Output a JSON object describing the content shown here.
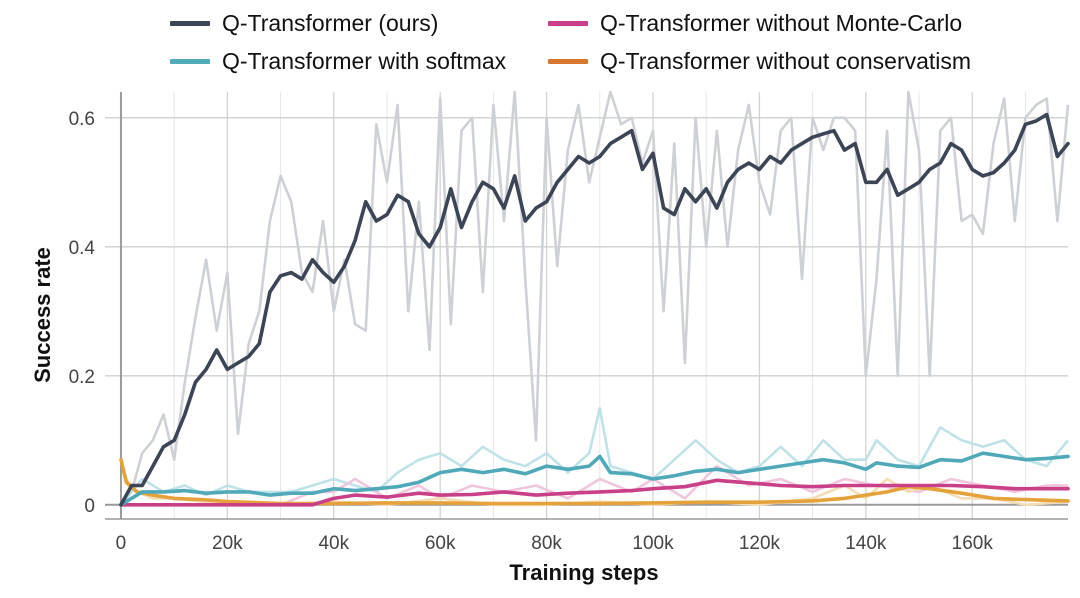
{
  "chart_data": {
    "type": "line",
    "xlabel": "Training steps",
    "ylabel": "Success rate",
    "xlim": [
      -3000,
      178000
    ],
    "ylim": [
      -0.022,
      0.64
    ],
    "xticks": [
      {
        "value": 0,
        "label": "0"
      },
      {
        "value": 20000,
        "label": "20k"
      },
      {
        "value": 40000,
        "label": "40k"
      },
      {
        "value": 60000,
        "label": "60k"
      },
      {
        "value": 80000,
        "label": "80k"
      },
      {
        "value": 100000,
        "label": "100k"
      },
      {
        "value": 120000,
        "label": "120k"
      },
      {
        "value": 140000,
        "label": "140k"
      },
      {
        "value": 160000,
        "label": "160k"
      }
    ],
    "yticks": [
      {
        "value": 0,
        "label": "0"
      },
      {
        "value": 0.2,
        "label": "0.2"
      },
      {
        "value": 0.4,
        "label": "0.4"
      },
      {
        "value": 0.6,
        "label": "0.6"
      }
    ],
    "grid": true,
    "legend_position": "top",
    "series": [
      {
        "name": "Q-Transformer (ours)",
        "color": "#3b4556",
        "raw_color": "#cdd1d6",
        "x": [
          0,
          2000,
          4000,
          6000,
          8000,
          10000,
          12000,
          14000,
          16000,
          18000,
          20000,
          22000,
          24000,
          26000,
          28000,
          30000,
          32000,
          34000,
          36000,
          38000,
          40000,
          42000,
          44000,
          46000,
          48000,
          50000,
          52000,
          54000,
          56000,
          58000,
          60000,
          62000,
          64000,
          66000,
          68000,
          70000,
          72000,
          74000,
          76000,
          78000,
          80000,
          82000,
          84000,
          86000,
          88000,
          90000,
          92000,
          94000,
          96000,
          98000,
          100000,
          102000,
          104000,
          106000,
          108000,
          110000,
          112000,
          114000,
          116000,
          118000,
          120000,
          122000,
          124000,
          126000,
          128000,
          130000,
          132000,
          134000,
          136000,
          138000,
          140000,
          142000,
          144000,
          146000,
          148000,
          150000,
          152000,
          154000,
          156000,
          158000,
          160000,
          162000,
          164000,
          166000,
          168000,
          170000,
          172000,
          174000,
          176000,
          178000
        ],
        "values": [
          0.0,
          0.03,
          0.03,
          0.06,
          0.09,
          0.1,
          0.14,
          0.19,
          0.21,
          0.24,
          0.21,
          0.22,
          0.23,
          0.25,
          0.33,
          0.355,
          0.36,
          0.35,
          0.38,
          0.36,
          0.345,
          0.37,
          0.41,
          0.47,
          0.44,
          0.45,
          0.48,
          0.47,
          0.42,
          0.4,
          0.43,
          0.49,
          0.43,
          0.47,
          0.5,
          0.49,
          0.46,
          0.51,
          0.44,
          0.46,
          0.47,
          0.5,
          0.52,
          0.54,
          0.53,
          0.54,
          0.56,
          0.57,
          0.58,
          0.52,
          0.545,
          0.46,
          0.45,
          0.49,
          0.47,
          0.49,
          0.46,
          0.5,
          0.52,
          0.53,
          0.52,
          0.54,
          0.53,
          0.55,
          0.56,
          0.57,
          0.575,
          0.58,
          0.55,
          0.56,
          0.5,
          0.5,
          0.52,
          0.48,
          0.49,
          0.5,
          0.52,
          0.53,
          0.56,
          0.55,
          0.52,
          0.51,
          0.515,
          0.53,
          0.55,
          0.59,
          0.595,
          0.605,
          0.54,
          0.56
        ],
        "raw_values": [
          0.0,
          0.02,
          0.08,
          0.1,
          0.14,
          0.07,
          0.19,
          0.29,
          0.38,
          0.27,
          0.36,
          0.11,
          0.25,
          0.3,
          0.44,
          0.51,
          0.47,
          0.36,
          0.33,
          0.44,
          0.3,
          0.38,
          0.28,
          0.27,
          0.59,
          0.5,
          0.62,
          0.3,
          0.47,
          0.24,
          0.63,
          0.28,
          0.58,
          0.6,
          0.33,
          0.62,
          0.44,
          0.64,
          0.35,
          0.1,
          0.6,
          0.37,
          0.55,
          0.62,
          0.5,
          0.57,
          0.64,
          0.59,
          0.6,
          0.53,
          0.58,
          0.3,
          0.56,
          0.22,
          0.6,
          0.4,
          0.58,
          0.4,
          0.55,
          0.62,
          0.5,
          0.45,
          0.58,
          0.6,
          0.35,
          0.6,
          0.55,
          0.6,
          0.6,
          0.58,
          0.2,
          0.35,
          0.58,
          0.2,
          0.64,
          0.55,
          0.2,
          0.58,
          0.6,
          0.44,
          0.45,
          0.42,
          0.56,
          0.63,
          0.44,
          0.6,
          0.62,
          0.63,
          0.44,
          0.62
        ]
      },
      {
        "name": "Q-Transformer with softmax",
        "color": "#4fa9b9",
        "raw_color": "#bfe2e8",
        "x": [
          0,
          4000,
          8000,
          12000,
          16000,
          20000,
          24000,
          28000,
          32000,
          36000,
          40000,
          44000,
          48000,
          52000,
          56000,
          60000,
          64000,
          68000,
          72000,
          76000,
          80000,
          84000,
          88000,
          90000,
          92000,
          96000,
          100000,
          104000,
          108000,
          112000,
          116000,
          120000,
          124000,
          128000,
          132000,
          136000,
          140000,
          142000,
          146000,
          150000,
          154000,
          158000,
          162000,
          166000,
          170000,
          174000,
          178000
        ],
        "values": [
          0.0,
          0.02,
          0.02,
          0.022,
          0.018,
          0.02,
          0.02,
          0.015,
          0.018,
          0.018,
          0.025,
          0.022,
          0.025,
          0.028,
          0.035,
          0.05,
          0.055,
          0.05,
          0.055,
          0.048,
          0.06,
          0.055,
          0.06,
          0.075,
          0.05,
          0.048,
          0.04,
          0.045,
          0.052,
          0.055,
          0.05,
          0.055,
          0.06,
          0.065,
          0.07,
          0.065,
          0.055,
          0.065,
          0.06,
          0.058,
          0.07,
          0.068,
          0.08,
          0.075,
          0.07,
          0.072,
          0.075
        ],
        "raw_values": [
          0.0,
          0.04,
          0.02,
          0.03,
          0.015,
          0.03,
          0.02,
          0.02,
          0.02,
          0.03,
          0.04,
          0.03,
          0.02,
          0.05,
          0.07,
          0.08,
          0.06,
          0.09,
          0.07,
          0.06,
          0.08,
          0.05,
          0.08,
          0.15,
          0.06,
          0.05,
          0.04,
          0.07,
          0.1,
          0.07,
          0.05,
          0.06,
          0.09,
          0.06,
          0.1,
          0.07,
          0.07,
          0.1,
          0.07,
          0.06,
          0.12,
          0.1,
          0.09,
          0.1,
          0.07,
          0.06,
          0.1
        ]
      },
      {
        "name": "Q-Transformer without Monte-Carlo",
        "color": "#c94088",
        "raw_color": "#f0c6dd",
        "x": [
          0,
          10000,
          20000,
          30000,
          36000,
          40000,
          44000,
          50000,
          56000,
          60000,
          66000,
          72000,
          78000,
          84000,
          90000,
          96000,
          100000,
          106000,
          112000,
          118000,
          124000,
          130000,
          136000,
          142000,
          150000,
          156000,
          162000,
          168000,
          174000,
          178000
        ],
        "values": [
          0.0,
          0.0,
          0.0,
          0.0,
          0.0,
          0.01,
          0.015,
          0.012,
          0.018,
          0.015,
          0.016,
          0.02,
          0.015,
          0.018,
          0.02,
          0.022,
          0.025,
          0.028,
          0.038,
          0.034,
          0.03,
          0.028,
          0.03,
          0.03,
          0.03,
          0.03,
          0.028,
          0.025,
          0.025,
          0.025
        ],
        "raw_values": [
          0.0,
          0.0,
          0.0,
          0.0,
          0.02,
          0.02,
          0.04,
          0.01,
          0.03,
          0.01,
          0.03,
          0.02,
          0.03,
          0.01,
          0.04,
          0.02,
          0.04,
          0.01,
          0.06,
          0.03,
          0.04,
          0.02,
          0.04,
          0.03,
          0.02,
          0.04,
          0.03,
          0.02,
          0.03,
          0.03
        ]
      },
      {
        "name": "Q-Transformer without conservatism",
        "color": "#e6a23a",
        "legend_color": "#d9772f",
        "raw_color": "#f4ddb5",
        "x": [
          0,
          1000,
          3000,
          6000,
          10000,
          15000,
          20000,
          30000,
          40000,
          50000,
          60000,
          70000,
          80000,
          90000,
          100000,
          110000,
          120000,
          130000,
          136000,
          140000,
          144000,
          148000,
          152000,
          158000,
          164000,
          170000,
          178000
        ],
        "values": [
          0.07,
          0.035,
          0.02,
          0.015,
          0.01,
          0.008,
          0.005,
          0.002,
          0.002,
          0.003,
          0.003,
          0.002,
          0.002,
          0.002,
          0.003,
          0.004,
          0.004,
          0.006,
          0.01,
          0.015,
          0.02,
          0.028,
          0.025,
          0.018,
          0.01,
          0.008,
          0.006
        ],
        "raw_values": [
          0.07,
          0.04,
          0.02,
          0.01,
          0.01,
          0.005,
          0.005,
          0.0,
          0.005,
          0.0,
          0.01,
          0.0,
          0.0,
          0.005,
          0.0,
          0.005,
          0.0,
          0.01,
          0.03,
          0.01,
          0.04,
          0.02,
          0.03,
          0.01,
          0.01,
          0.0,
          0.005
        ]
      }
    ]
  }
}
